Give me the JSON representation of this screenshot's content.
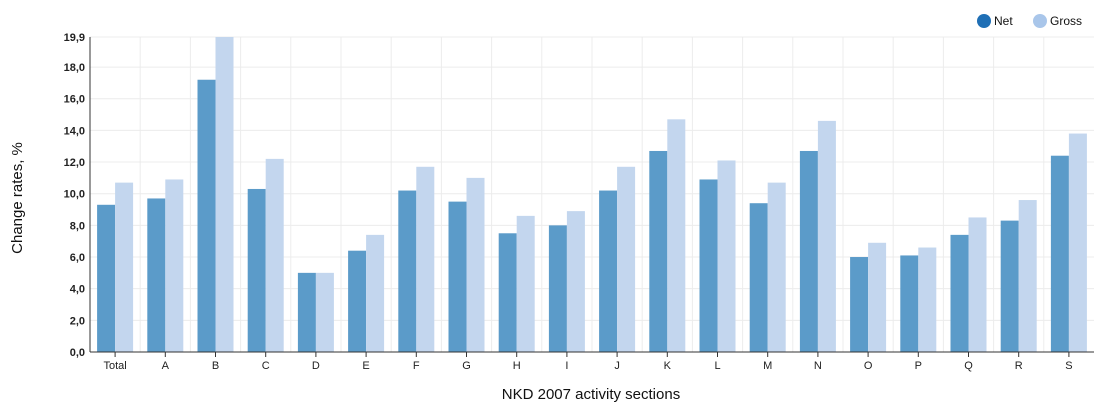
{
  "chart_data": {
    "type": "bar",
    "title": "",
    "xlabel": "NKD 2007 activity sections",
    "ylabel": "Change rates, %",
    "categories": [
      "Total",
      "A",
      "B",
      "C",
      "D",
      "E",
      "F",
      "G",
      "H",
      "I",
      "J",
      "K",
      "L",
      "M",
      "N",
      "O",
      "P",
      "Q",
      "R",
      "S"
    ],
    "series": [
      {
        "name": "Net",
        "color": "#5b9bc9",
        "values": [
          9.3,
          9.7,
          17.2,
          10.3,
          5.0,
          6.4,
          10.2,
          9.5,
          7.5,
          8.0,
          10.2,
          12.7,
          10.9,
          9.4,
          12.7,
          6.0,
          6.1,
          7.4,
          8.3,
          12.4
        ]
      },
      {
        "name": "Gross",
        "color": "#c3d6ee",
        "values": [
          10.7,
          10.9,
          19.9,
          12.2,
          5.0,
          7.4,
          11.7,
          11.0,
          8.6,
          8.9,
          11.7,
          14.7,
          12.1,
          10.7,
          14.6,
          6.9,
          6.6,
          8.5,
          9.6,
          13.8
        ]
      }
    ],
    "y_ticks": [
      "0,0",
      "2,0",
      "4,0",
      "6,0",
      "8,0",
      "10,0",
      "12,0",
      "14,0",
      "16,0",
      "18,0",
      "19,9"
    ],
    "y_tick_values": [
      0,
      2,
      4,
      6,
      8,
      10,
      12,
      14,
      16,
      18,
      19.9
    ],
    "ylim": [
      0,
      19.9
    ],
    "grid": true,
    "legend_position": "top-right",
    "legend_marker_colors": {
      "Net": "#1f6fb5",
      "Gross": "#a9c6ea"
    }
  }
}
